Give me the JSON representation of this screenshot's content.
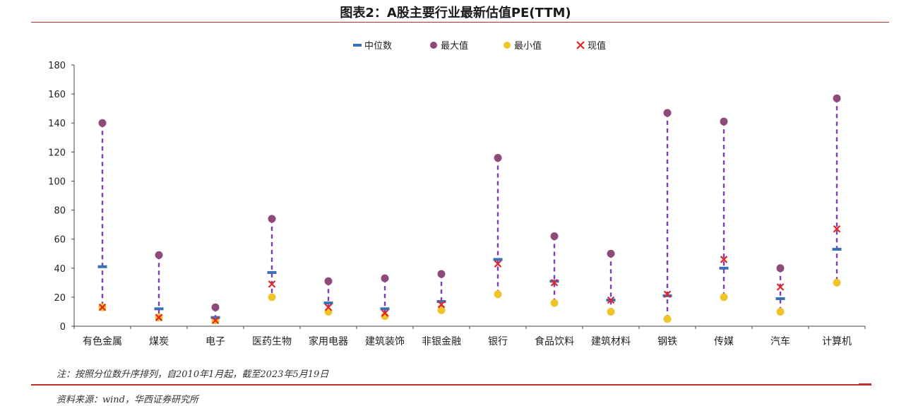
{
  "title": "图表2：A股主要行业最新估值PE(TTM)",
  "footnote": "注：按照分位数升序排列，自2010年1月起，截至2023年5月19日",
  "source": "资料来源：wind，华西证券研究所",
  "colors": {
    "median": "#3b6fb6",
    "max": "#8e4a78",
    "min": "#f2c42c",
    "current": "#e0252b",
    "range_line": "#7b3fa6",
    "rule": "#c0302a"
  },
  "chart_data": {
    "type": "scatter",
    "legend_position": "top-center",
    "grid": false,
    "ylim": [
      0,
      180
    ],
    "yticks": [
      0,
      20,
      40,
      60,
      80,
      100,
      120,
      140,
      160,
      180
    ],
    "categories": [
      "有色金属",
      "煤炭",
      "电子",
      "医药生物",
      "家用电器",
      "建筑装饰",
      "非银金融",
      "银行",
      "食品饮料",
      "建筑材料",
      "钢铁",
      "传媒",
      "汽车",
      "计算机"
    ],
    "series": [
      {
        "name": "中位数",
        "marker": "dash",
        "values": [
          41,
          12,
          6,
          37,
          16,
          12,
          17,
          46,
          31,
          18,
          21,
          40,
          19,
          53
        ]
      },
      {
        "name": "最大值",
        "marker": "circle",
        "values": [
          140,
          49,
          13,
          74,
          31,
          33,
          36,
          116,
          62,
          50,
          147,
          141,
          40,
          157
        ]
      },
      {
        "name": "最小值",
        "marker": "circle",
        "values": [
          13,
          6,
          4,
          20,
          10,
          7,
          11,
          22,
          16,
          10,
          5,
          20,
          10,
          30
        ]
      },
      {
        "name": "现值",
        "marker": "x",
        "values": [
          13,
          6,
          4,
          29,
          13,
          9,
          15,
          43,
          30,
          18,
          22,
          46,
          27,
          67
        ]
      }
    ]
  }
}
